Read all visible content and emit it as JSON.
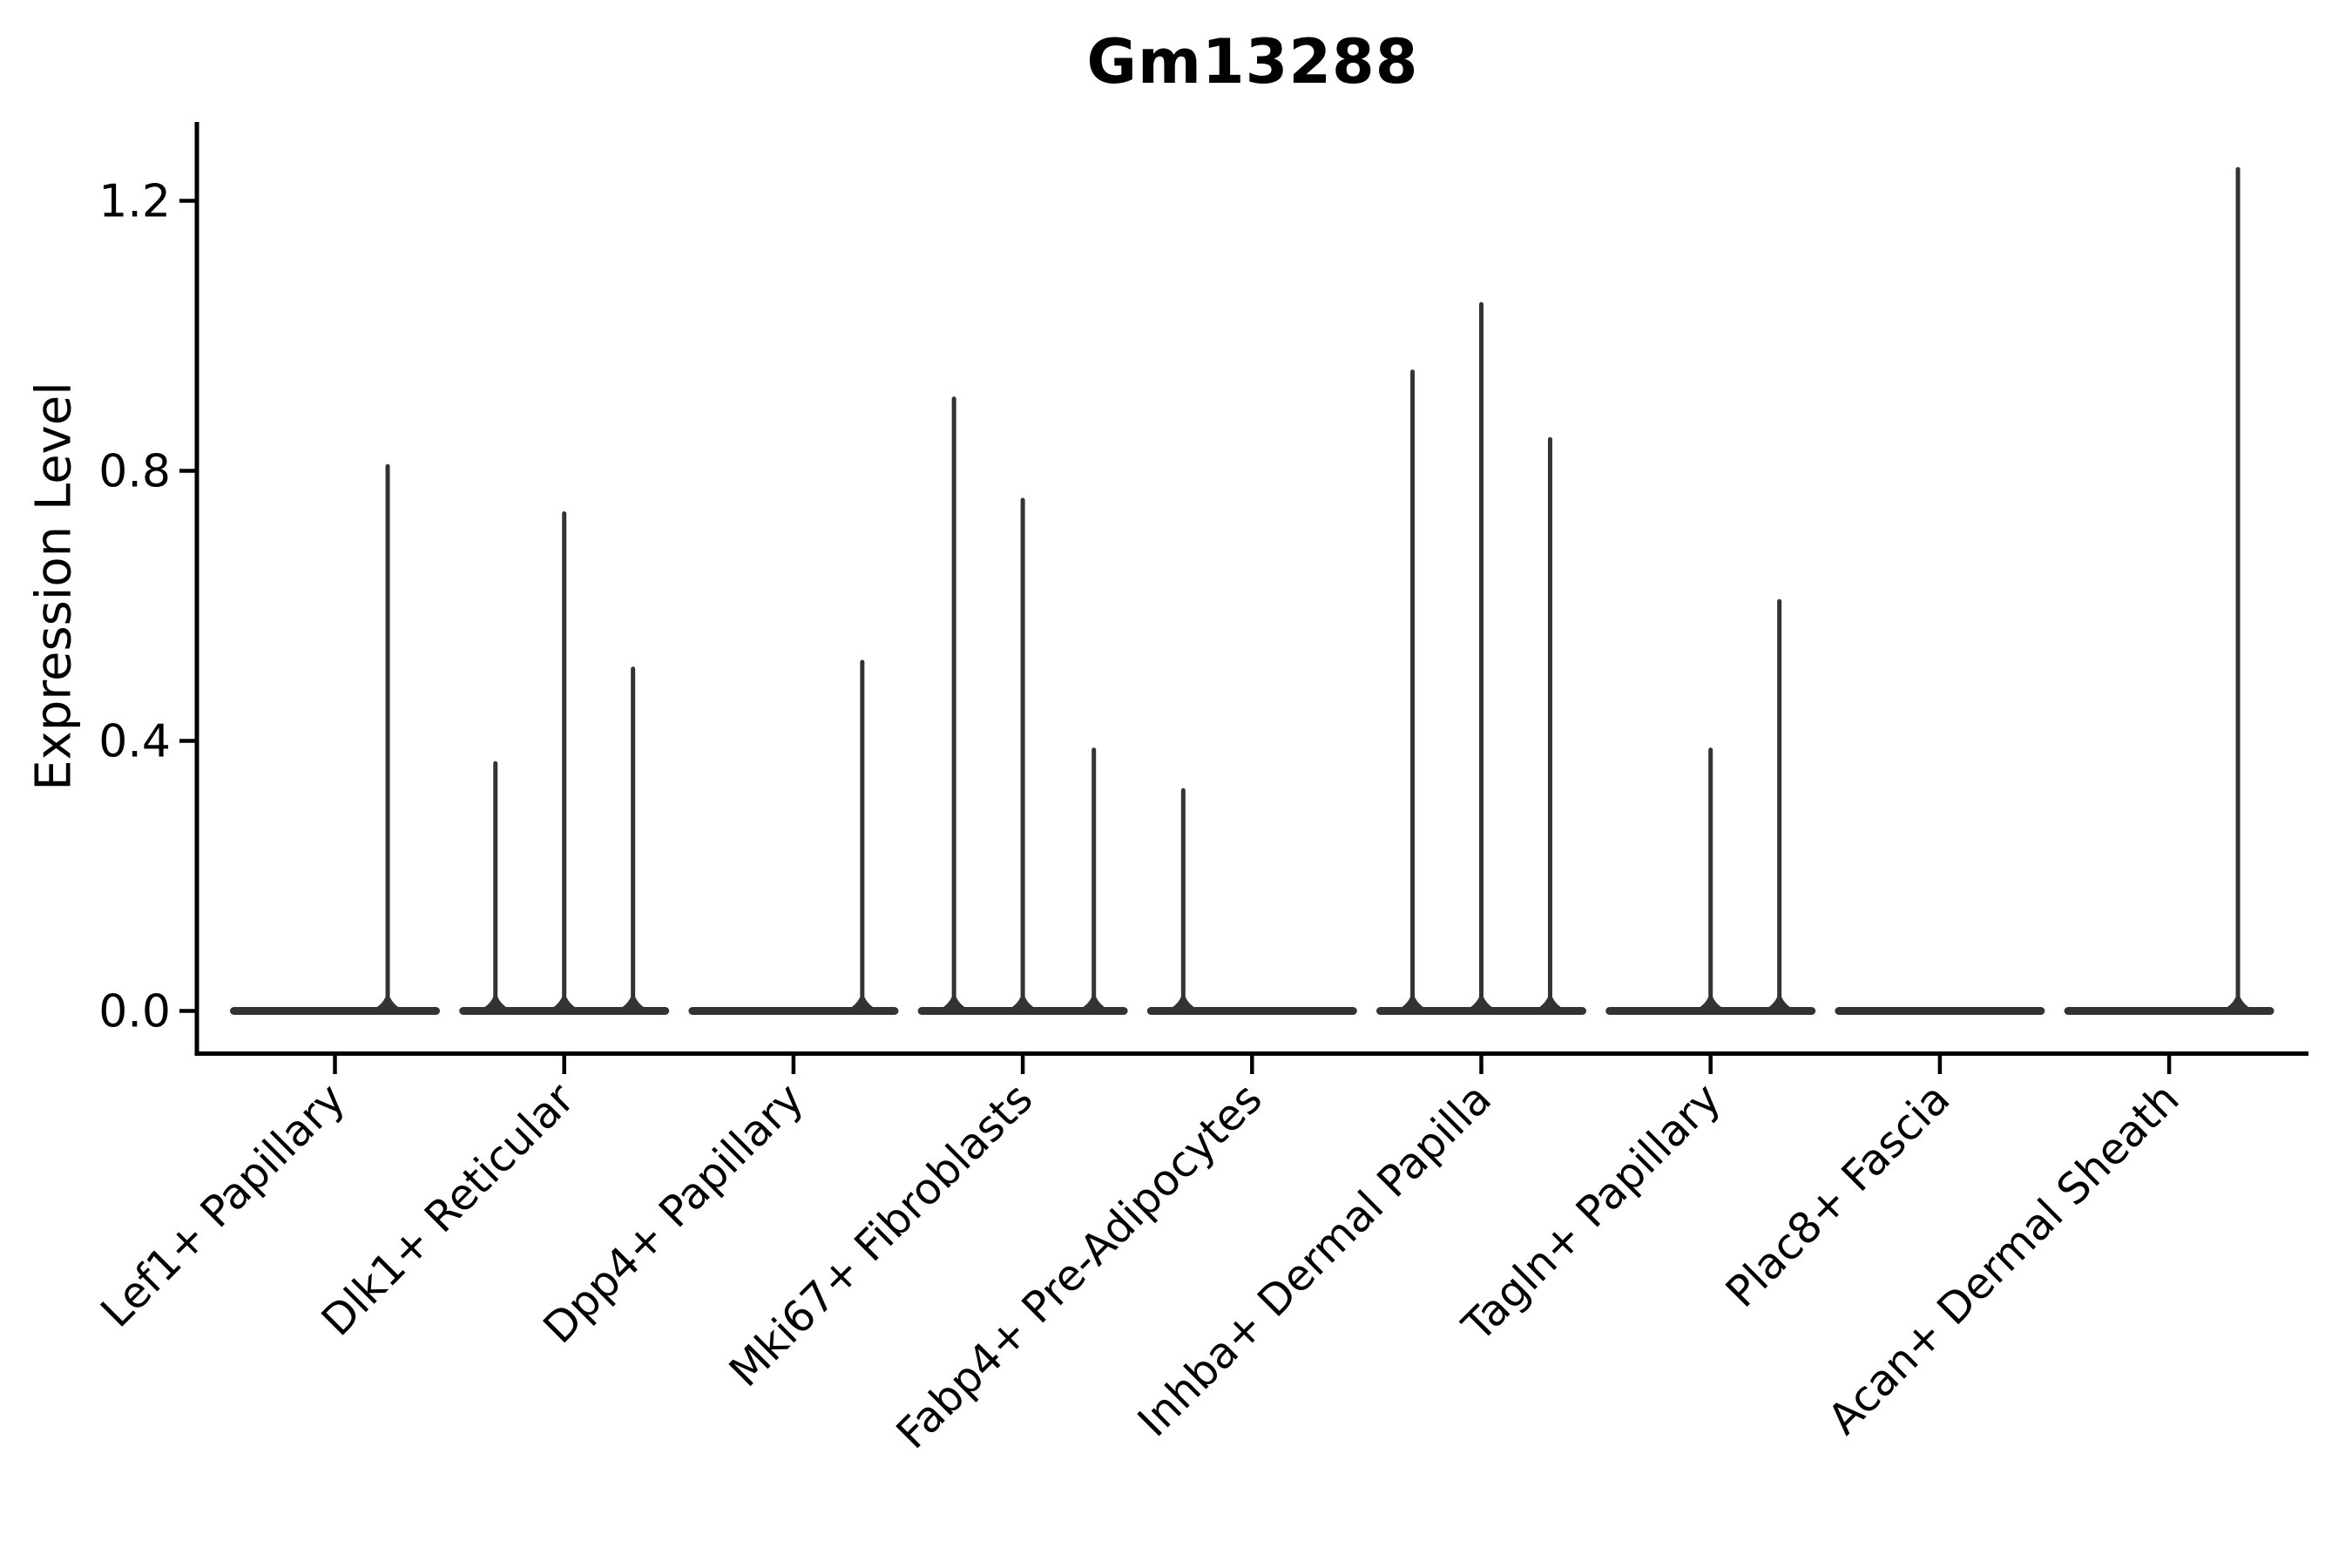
{
  "title": "Gm13288",
  "ylabel": "Expression Level",
  "colors": {
    "violin": "#333333",
    "axis": "#000000",
    "text": "#000000",
    "background": "#ffffff"
  },
  "chart_data": {
    "type": "violin",
    "title": "Gm13288",
    "xlabel": "",
    "ylabel": "Expression Level",
    "ylim": [
      -0.06,
      1.32
    ],
    "grid": false,
    "legend": "none",
    "y_tick_values": [
      0.0,
      0.4,
      0.8,
      1.2
    ],
    "y_tick_labels": [
      "0.0",
      "0.4",
      "0.8",
      "1.2"
    ],
    "x_tick_rotation_deg": 45,
    "categories": [
      "Lef1+ Papillary",
      "Dlk1+ Reticular",
      "Dpp4+ Papillary",
      "Mki67+ Fibroblasts",
      "Fabp4+ Pre-Adipocytes",
      "Inhba+ Dermal Papilla",
      "Tagln+ Papillary",
      "Plac8+ Fascia",
      "Acan+ Dermal Sheath"
    ],
    "violins": [
      {
        "label": "Lef1+ Papillary",
        "base_value": 0.0,
        "spikes": [
          {
            "offset": 0.23,
            "height": 0.81
          }
        ]
      },
      {
        "label": "Dlk1+ Reticular",
        "base_value": 0.0,
        "spikes": [
          {
            "offset": -0.3,
            "height": 0.37
          },
          {
            "offset": 0.0,
            "height": 0.74
          },
          {
            "offset": 0.3,
            "height": 0.51
          }
        ]
      },
      {
        "label": "Dpp4+ Papillary",
        "base_value": 0.0,
        "spikes": [
          {
            "offset": 0.3,
            "height": 0.52
          }
        ]
      },
      {
        "label": "Mki67+ Fibroblasts",
        "base_value": 0.0,
        "spikes": [
          {
            "offset": -0.3,
            "height": 0.91
          },
          {
            "offset": 0.0,
            "height": 0.76
          },
          {
            "offset": 0.31,
            "height": 0.39
          }
        ]
      },
      {
        "label": "Fabp4+ Pre-Adipocytes",
        "base_value": 0.0,
        "spikes": [
          {
            "offset": -0.3,
            "height": 0.33
          }
        ]
      },
      {
        "label": "Inhba+ Dermal Papilla",
        "base_value": 0.0,
        "spikes": [
          {
            "offset": -0.3,
            "height": 0.95
          },
          {
            "offset": 0.0,
            "height": 1.05
          },
          {
            "offset": 0.3,
            "height": 0.85
          }
        ]
      },
      {
        "label": "Tagln+ Papillary",
        "base_value": 0.0,
        "spikes": [
          {
            "offset": 0.0,
            "height": 0.39
          },
          {
            "offset": 0.3,
            "height": 0.61
          }
        ]
      },
      {
        "label": "Plac8+ Fascia",
        "base_value": 0.0,
        "spikes": []
      },
      {
        "label": "Acan+ Dermal Sheath",
        "base_value": 0.0,
        "spikes": [
          {
            "offset": 0.3,
            "height": 1.25
          }
        ]
      }
    ]
  }
}
